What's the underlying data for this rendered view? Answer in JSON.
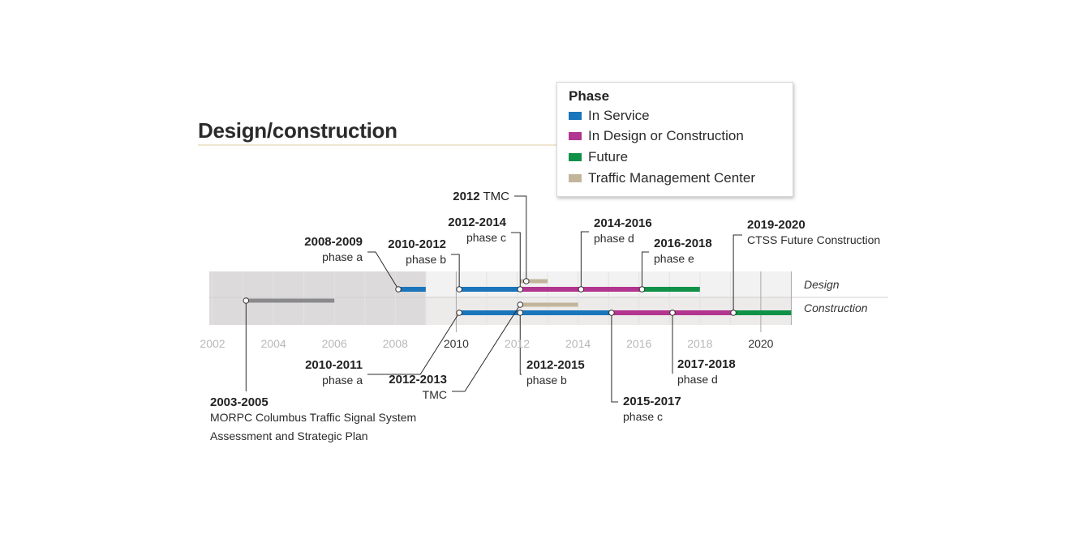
{
  "title": "Design/construction",
  "legend": {
    "title": "Phase",
    "items": [
      {
        "key": "in_service",
        "label": "In Service",
        "color": "#1a75bb"
      },
      {
        "key": "design",
        "label": "In Design or Construction",
        "color": "#b2358f"
      },
      {
        "key": "future",
        "label": "Future",
        "color": "#0f9148"
      },
      {
        "key": "tmc",
        "label": "Traffic Management Center",
        "color": "#c2b59b"
      }
    ]
  },
  "chart_data": {
    "type": "timeline",
    "x_range": [
      2002,
      2021
    ],
    "ticks": [
      {
        "label": "2002",
        "value": 2002,
        "emphasis": false
      },
      {
        "label": "2004",
        "value": 2004,
        "emphasis": false
      },
      {
        "label": "2006",
        "value": 2006,
        "emphasis": false
      },
      {
        "label": "2008",
        "value": 2008,
        "emphasis": false
      },
      {
        "label": "2010",
        "value": 2010,
        "emphasis": true
      },
      {
        "label": "2012",
        "value": 2012,
        "emphasis": false
      },
      {
        "label": "2014",
        "value": 2014,
        "emphasis": false
      },
      {
        "label": "2016",
        "value": 2016,
        "emphasis": false
      },
      {
        "label": "2018",
        "value": 2018,
        "emphasis": false
      },
      {
        "label": "2020",
        "value": 2020,
        "emphasis": true
      }
    ],
    "shaded_region": [
      2002,
      2008
    ],
    "rows": [
      {
        "key": "design",
        "label": "Design"
      },
      {
        "key": "construction",
        "label": "Construction"
      }
    ],
    "bars": [
      {
        "row": "study",
        "start": 2003.1,
        "end": 2006.0,
        "category": "study",
        "color": "#8a8a8d"
      },
      {
        "row": "design",
        "start": 2008.1,
        "end": 2009.0,
        "category": "in_service"
      },
      {
        "row": "design",
        "start": 2010.1,
        "end": 2012.1,
        "category": "in_service"
      },
      {
        "row": "design",
        "start": 2012.1,
        "end": 2016.1,
        "category": "design"
      },
      {
        "row": "design",
        "start": 2016.1,
        "end": 2018.0,
        "category": "future"
      },
      {
        "row": "design_tmc",
        "start": 2012.1,
        "end": 2013.0,
        "category": "tmc"
      },
      {
        "row": "construction",
        "start": 2010.1,
        "end": 2015.1,
        "category": "in_service"
      },
      {
        "row": "construction",
        "start": 2015.1,
        "end": 2019.1,
        "category": "design"
      },
      {
        "row": "construction",
        "start": 2019.1,
        "end": 2021.0,
        "category": "future"
      },
      {
        "row": "construction_tmc",
        "start": 2012.1,
        "end": 2014.0,
        "category": "tmc"
      }
    ],
    "annotations": [
      {
        "year_label": "2003-2005",
        "desc": [
          "MORPC Columbus Traffic Signal System",
          "Assessment and Strategic Plan"
        ],
        "x": 2003.1,
        "row": "study",
        "side": "below",
        "align": "left"
      },
      {
        "year_label": "2008-2009",
        "desc": [
          "phase a"
        ],
        "x": 2008.1,
        "row": "design",
        "side": "above",
        "align": "right"
      },
      {
        "year_label": "2010-2012",
        "desc": [
          "phase b"
        ],
        "x": 2010.1,
        "row": "design",
        "side": "above",
        "align": "right"
      },
      {
        "year_label": "2012-2014",
        "desc": [
          "phase c"
        ],
        "x": 2012.1,
        "row": "design",
        "side": "above",
        "align": "right"
      },
      {
        "year_label": "2012",
        "inline_desc": "TMC",
        "x": 2012.3,
        "row": "design_tmc",
        "side": "above",
        "align": "right"
      },
      {
        "year_label": "2014-2016",
        "desc": [
          "phase d"
        ],
        "x": 2014.1,
        "row": "design",
        "side": "above",
        "align": "left"
      },
      {
        "year_label": "2016-2018",
        "desc": [
          "phase e"
        ],
        "x": 2016.1,
        "row": "design",
        "side": "above",
        "align": "left"
      },
      {
        "year_label": "2019-2020",
        "desc": [
          "CTSS Future Construction"
        ],
        "x": 2019.1,
        "row": "construction",
        "side": "above",
        "align": "left"
      },
      {
        "year_label": "2010-2011",
        "desc": [
          "phase a"
        ],
        "x": 2010.1,
        "row": "construction",
        "side": "below",
        "align": "right"
      },
      {
        "year_label": "2012-2013",
        "desc": [
          "TMC"
        ],
        "x": 2012.1,
        "row": "construction_tmc",
        "side": "below",
        "align": "right"
      },
      {
        "year_label": "2012-2015",
        "desc": [
          "phase b"
        ],
        "x": 2012.1,
        "row": "construction",
        "side": "below",
        "align": "left"
      },
      {
        "year_label": "2015-2017",
        "desc": [
          "phase c"
        ],
        "x": 2015.1,
        "row": "construction",
        "side": "below",
        "align": "left"
      },
      {
        "year_label": "2017-2018",
        "desc": [
          "phase d"
        ],
        "x": 2017.1,
        "row": "construction",
        "side": "below",
        "align": "left"
      }
    ]
  }
}
